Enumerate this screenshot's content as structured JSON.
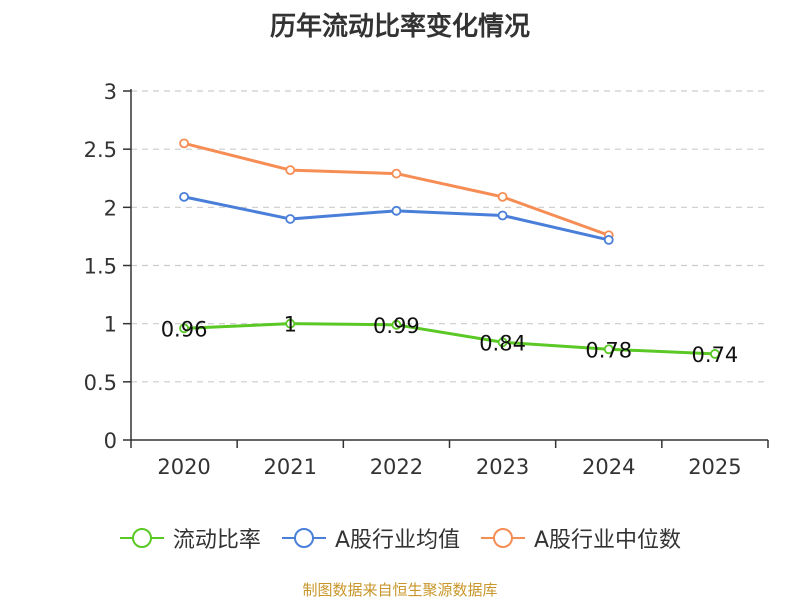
{
  "chart_data": {
    "type": "line",
    "title": "历年流动比率变化情况",
    "xlabel": "",
    "ylabel": "",
    "categories": [
      "2020",
      "2021",
      "2022",
      "2023",
      "2024",
      "2025"
    ],
    "ylim": [
      0,
      3
    ],
    "yticks": [
      "0",
      "0.5",
      "1",
      "1.5",
      "2",
      "2.5",
      "3"
    ],
    "grid": true,
    "legend_position": "bottom",
    "series": [
      {
        "name": "流动比率",
        "color": "#5ac825",
        "values": [
          0.96,
          1,
          0.99,
          0.84,
          0.78,
          0.74
        ],
        "labels": [
          "0.96",
          "1",
          "0.99",
          "0.84",
          "0.78",
          "0.74"
        ]
      },
      {
        "name": "A股行业均值",
        "color": "#4a7fd9",
        "values": [
          2.09,
          1.9,
          1.97,
          1.93,
          1.72,
          null
        ]
      },
      {
        "name": "A股行业中位数",
        "color": "#f58d55",
        "values": [
          2.55,
          2.32,
          2.29,
          2.09,
          1.76,
          null
        ]
      }
    ]
  },
  "footer": {
    "source": "制图数据来自恒生聚源数据库"
  }
}
